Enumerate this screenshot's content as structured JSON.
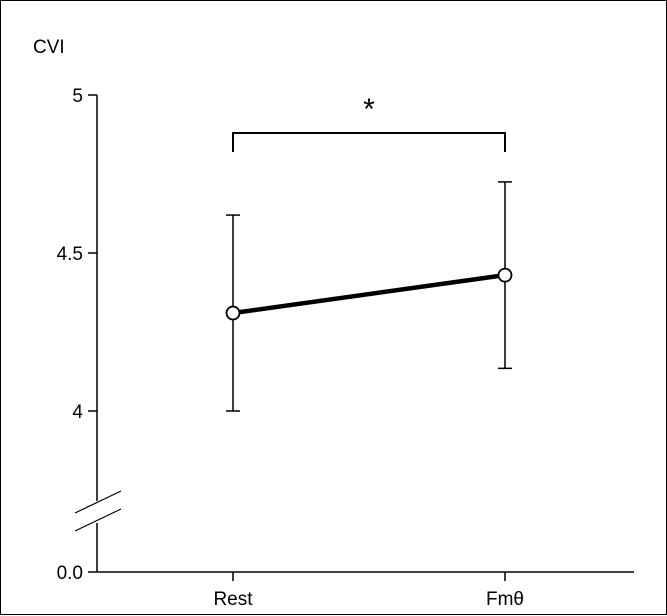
{
  "chart_data": {
    "type": "line",
    "ylabel": "CVI",
    "categories": [
      "Rest",
      "Fmθ"
    ],
    "series": [
      {
        "values": [
          4.31,
          4.43
        ],
        "error": [
          0.31,
          0.295
        ]
      }
    ],
    "yticks": [
      "5",
      "4.5",
      "4",
      "0.0"
    ],
    "ylim": [
      4,
      5
    ],
    "y_axis_break": true,
    "y_axis_bottom_label": "0.0",
    "significance": {
      "between": [
        "Rest",
        "Fmθ"
      ],
      "marker": "*"
    },
    "marker_style": "open-circle",
    "line_color": "#000000",
    "grid": false
  }
}
